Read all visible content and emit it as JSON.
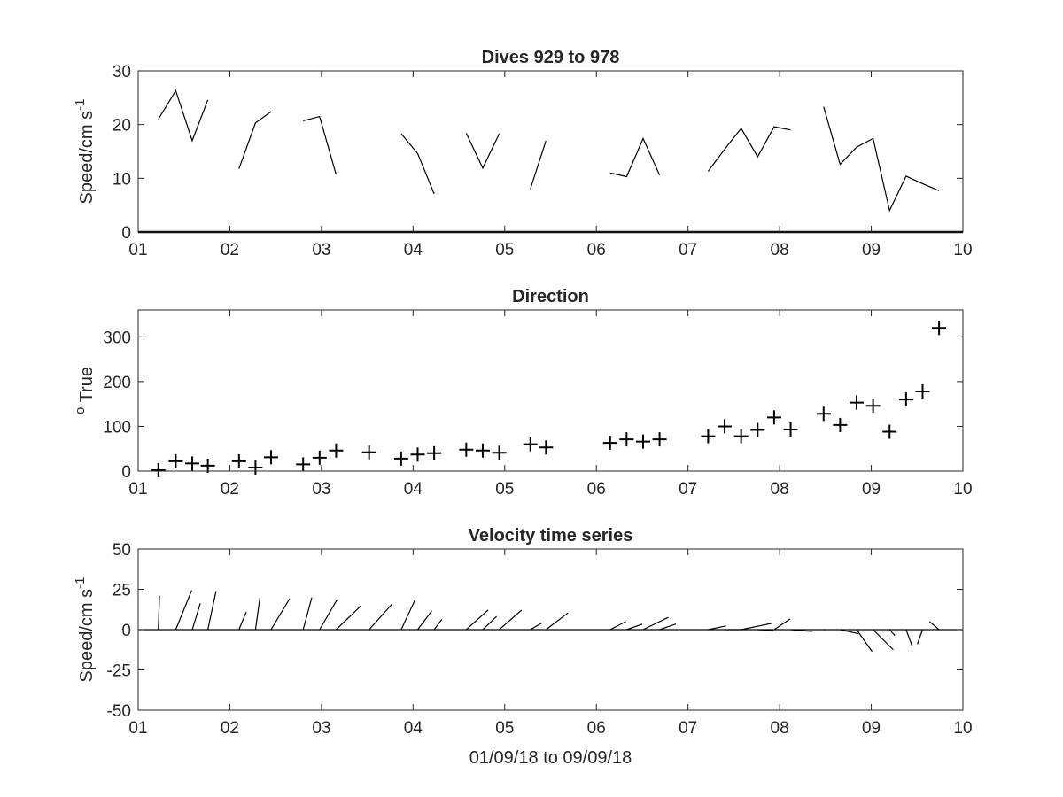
{
  "chart_data": [
    {
      "type": "line",
      "title": "Dives 929 to 978",
      "ylabel_main": "Speed/cm s",
      "ylabel_sup": "-1",
      "xlabel": "",
      "xlim": [
        1,
        10
      ],
      "ylim": [
        0,
        30
      ],
      "xticks": [
        1,
        2,
        3,
        4,
        5,
        6,
        7,
        8,
        9,
        10
      ],
      "xtick_labels": [
        "01",
        "02",
        "03",
        "04",
        "05",
        "06",
        "07",
        "08",
        "09",
        "10"
      ],
      "yticks": [
        0,
        10,
        20,
        30
      ],
      "ytick_labels": [
        "0",
        "10",
        "20",
        "30"
      ],
      "segments": [
        {
          "x": [
            1.22,
            1.41,
            1.59,
            1.76
          ],
          "y": [
            21.0,
            26.3,
            17.0,
            24.6
          ]
        },
        {
          "x": [
            2.1,
            2.28,
            2.45
          ],
          "y": [
            11.8,
            20.3,
            22.4
          ]
        },
        {
          "x": [
            2.8,
            2.98,
            3.16
          ],
          "y": [
            20.7,
            21.5,
            10.7
          ]
        },
        {
          "x": [
            3.87,
            4.05,
            4.23
          ],
          "y": [
            18.3,
            14.6,
            7.1
          ]
        },
        {
          "x": [
            4.58,
            4.76,
            4.94
          ],
          "y": [
            18.4,
            11.9,
            18.3
          ]
        },
        {
          "x": [
            5.28,
            5.45
          ],
          "y": [
            8.0,
            17.0
          ]
        },
        {
          "x": [
            6.15,
            6.33,
            6.51,
            6.69
          ],
          "y": [
            11.0,
            10.3,
            17.4,
            10.6
          ]
        },
        {
          "x": [
            7.22,
            7.4,
            7.58,
            7.76,
            7.94,
            8.12
          ],
          "y": [
            11.3,
            15.4,
            19.3,
            14.0,
            19.6,
            19.0
          ]
        },
        {
          "x": [
            8.48,
            8.66,
            8.84,
            9.02,
            9.2,
            9.38,
            9.56,
            9.74
          ],
          "y": [
            23.3,
            12.6,
            15.8,
            17.4,
            4.0,
            10.4,
            9.0,
            7.7
          ]
        }
      ]
    },
    {
      "type": "scatter",
      "title": "Direction",
      "ylabel_sup": "o",
      "ylabel_main": " True",
      "xlabel": "",
      "xlim": [
        1,
        10
      ],
      "ylim": [
        0,
        360
      ],
      "xticks": [
        1,
        2,
        3,
        4,
        5,
        6,
        7,
        8,
        9,
        10
      ],
      "xtick_labels": [
        "01",
        "02",
        "03",
        "04",
        "05",
        "06",
        "07",
        "08",
        "09",
        "10"
      ],
      "yticks": [
        0,
        100,
        200,
        300
      ],
      "ytick_labels": [
        "0",
        "100",
        "200",
        "300"
      ],
      "points": {
        "x": [
          1.22,
          1.41,
          1.59,
          1.76,
          2.1,
          2.28,
          2.45,
          2.8,
          2.98,
          3.16,
          3.52,
          3.87,
          4.05,
          4.23,
          4.58,
          4.76,
          4.94,
          5.28,
          5.45,
          6.15,
          6.33,
          6.51,
          6.69,
          7.22,
          7.4,
          7.58,
          7.76,
          7.94,
          8.12,
          8.48,
          8.66,
          8.84,
          9.02,
          9.2,
          9.38,
          9.56,
          9.74
        ],
        "y": [
          2,
          22,
          17,
          12,
          22,
          8,
          31,
          15,
          30,
          46,
          42,
          28,
          37,
          40,
          48,
          46,
          41,
          60,
          53,
          63,
          71,
          66,
          71,
          78,
          100,
          78,
          92,
          120,
          93,
          128,
          103,
          153,
          146,
          88,
          160,
          178,
          320
        ]
      }
    },
    {
      "type": "quiver",
      "title": "Velocity time series",
      "ylabel_main": "Speed/cm s",
      "ylabel_sup": "-1",
      "xlabel": "01/09/18 to 09/09/18",
      "xlim": [
        1,
        10
      ],
      "ylim": [
        -50,
        50
      ],
      "xticks": [
        1,
        2,
        3,
        4,
        5,
        6,
        7,
        8,
        9,
        10
      ],
      "xtick_labels": [
        "01",
        "02",
        "03",
        "04",
        "05",
        "06",
        "07",
        "08",
        "09",
        "10"
      ],
      "yticks": [
        -50,
        -25,
        0,
        25,
        50
      ],
      "ytick_labels": [
        "-50",
        "-25",
        "0",
        "25",
        "50"
      ],
      "vectors": {
        "t": [
          1.22,
          1.41,
          1.59,
          1.76,
          2.1,
          2.28,
          2.45,
          2.8,
          2.98,
          3.16,
          3.52,
          3.87,
          4.05,
          4.23,
          4.58,
          4.76,
          4.94,
          5.28,
          5.45,
          6.15,
          6.33,
          6.51,
          6.69,
          7.22,
          7.4,
          7.58,
          7.76,
          7.94,
          8.12,
          8.48,
          8.66,
          8.84,
          9.02,
          9.2,
          9.38,
          9.56,
          9.74
        ],
        "u": [
          0.7,
          9.9,
          5.0,
          5.1,
          4.5,
          2.8,
          11.5,
          5.4,
          10.8,
          15.5,
          14.0,
          8.5,
          8.8,
          4.7,
          13.6,
          8.6,
          13.9,
          6.9,
          13.6,
          9.8,
          9.7,
          15.6,
          10.1,
          11.1,
          11.3,
          18.8,
          9.7,
          10.0,
          13.2,
          1.0,
          11.3,
          9.6,
          12.5,
          3.3,
          3.6,
          -3.2,
          -5.9
        ],
        "v": [
          21.0,
          24.4,
          16.3,
          23.9,
          11.0,
          20.1,
          19.1,
          20.0,
          18.6,
          14.9,
          15.6,
          18.3,
          11.7,
          6.3,
          12.2,
          8.2,
          12.1,
          4.0,
          10.3,
          5.0,
          3.4,
          7.6,
          3.5,
          2.3,
          0.0,
          3.9,
          -0.5,
          6.7,
          -1.1,
          -0.1,
          -2.5,
          -13.6,
          -12.5,
          -3.7,
          -9.8,
          -9.0,
          5.0
        ]
      }
    }
  ]
}
